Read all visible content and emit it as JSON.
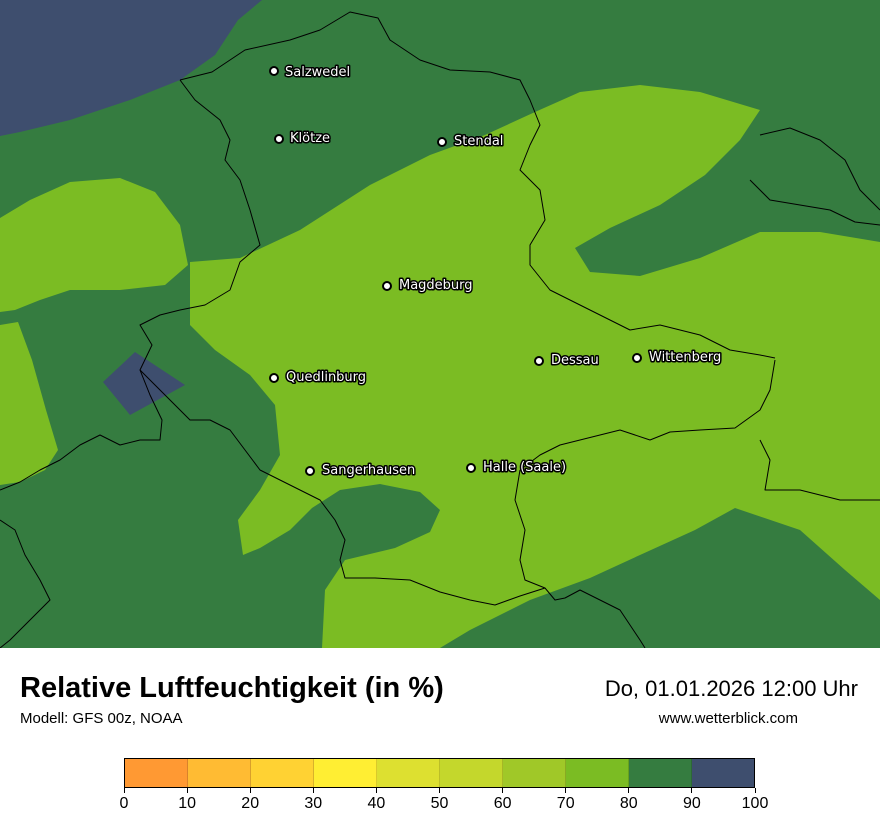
{
  "header": {
    "title": "Relative Luftfeuchtigkeit (in %)",
    "model": "Modell: GFS 00z, NOAA",
    "datetime": "Do, 01.01.2026 12:00 Uhr",
    "website": "www.wetterblick.com"
  },
  "legend": {
    "ticks": [
      "0",
      "10",
      "20",
      "30",
      "40",
      "50",
      "60",
      "70",
      "80",
      "90",
      "100"
    ],
    "colors": [
      "#ff9933",
      "#ffbb33",
      "#ffd233",
      "#ffee33",
      "#dde030",
      "#c4d72c",
      "#a0c828",
      "#7bbc23",
      "#357c40",
      "#3e4e6e"
    ]
  },
  "map": {
    "colors": {
      "green_dark": "#357c40",
      "green_light": "#7bbc23",
      "navy": "#3e4e6e"
    },
    "cities": [
      {
        "name": "Salzwedel"
      },
      {
        "name": "Klötze"
      },
      {
        "name": "Stendal"
      },
      {
        "name": "Magdeburg"
      },
      {
        "name": "Quedlinburg"
      },
      {
        "name": "Dessau"
      },
      {
        "name": "Wittenberg"
      },
      {
        "name": "Sangerhausen"
      },
      {
        "name": "Halle (Saale)"
      }
    ]
  }
}
